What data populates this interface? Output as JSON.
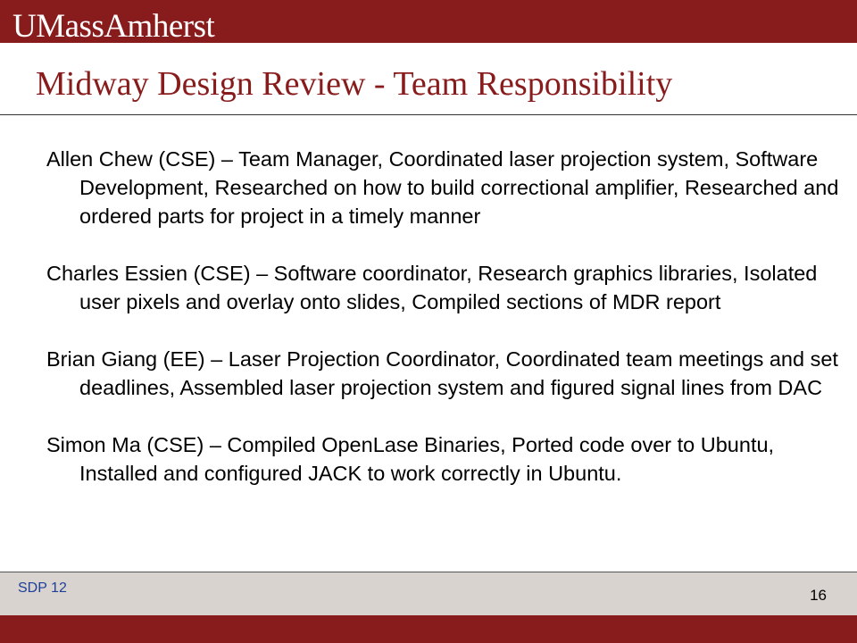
{
  "header": {
    "logo_text": "UMassAmherst"
  },
  "slide": {
    "title": "Midway Design Review - Team Responsibility",
    "paragraphs": [
      "Allen Chew (CSE) – Team Manager, Coordinated laser projection system, Software Development, Researched on how to build correctional amplifier, Researched and ordered parts for project in a timely manner",
      "Charles Essien (CSE) – Software coordinator, Research graphics libraries, Isolated user pixels and overlay onto slides, Compiled sections of MDR report",
      "Brian Giang (EE) – Laser Projection Coordinator, Coordinated team meetings and set deadlines, Assembled laser projection system and figured signal lines from DAC",
      "Simon Ma (CSE) – Compiled OpenLase Binaries, Ported code over to Ubuntu, Installed and configured JACK to work correctly in Ubuntu."
    ]
  },
  "footer": {
    "label": "SDP 12",
    "page_number": "16"
  },
  "colors": {
    "brand_maroon": "#881c1c",
    "footer_gray": "#d8d3cf",
    "footer_label_blue": "#1f3f99"
  }
}
